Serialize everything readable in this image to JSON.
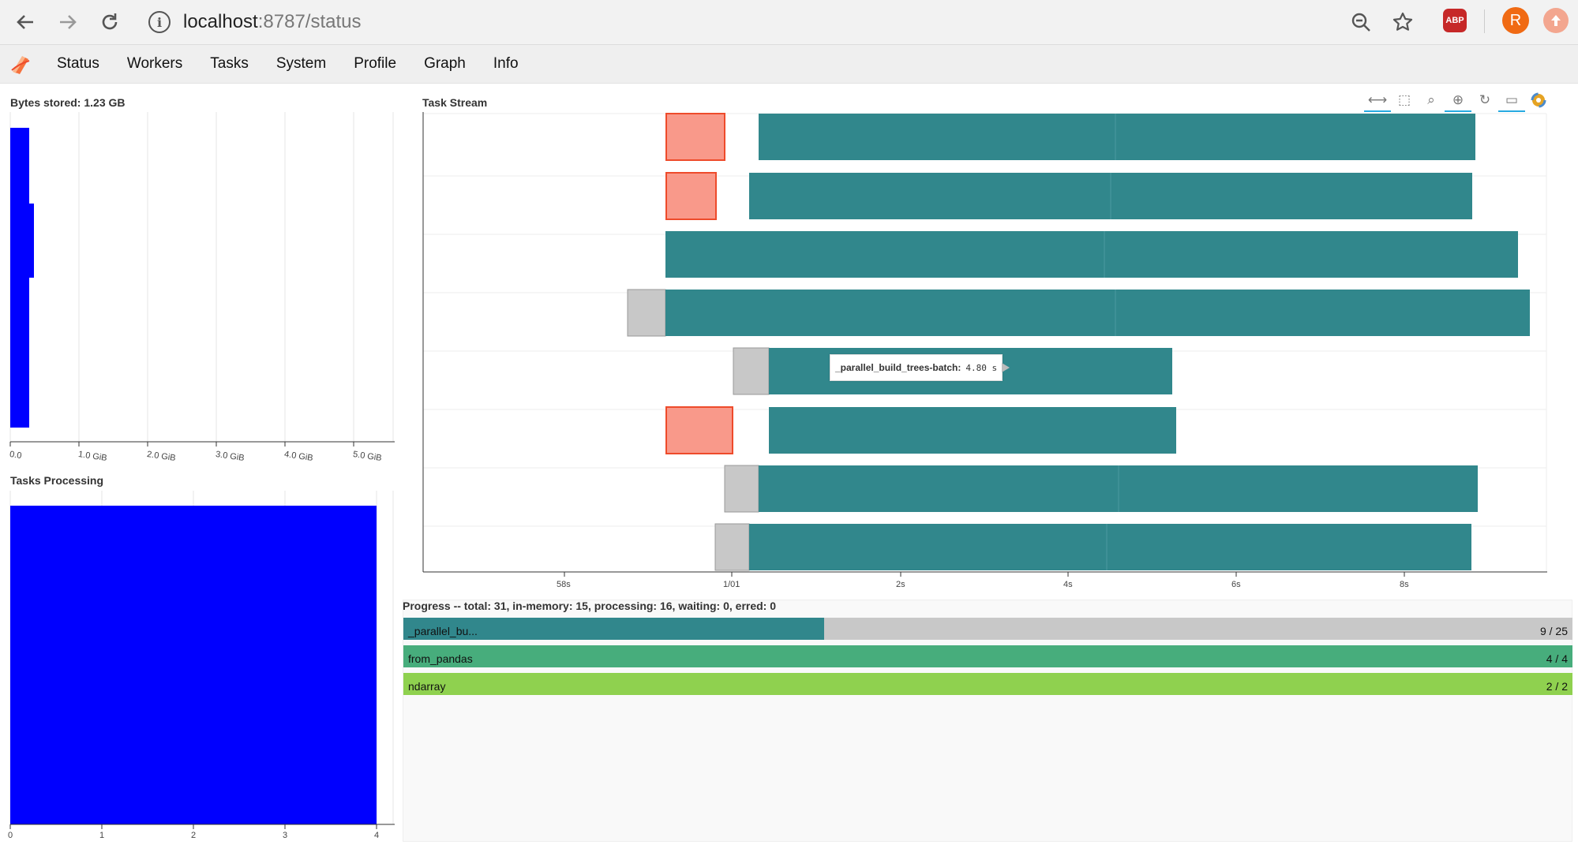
{
  "browser": {
    "url_host": "localhost",
    "url_path": ":8787/status",
    "back_icon": "arrow-left-icon",
    "forward_icon": "arrow-right-icon",
    "reload_icon": "reload-icon",
    "abp_label": "ABP",
    "avatar_letter": "R"
  },
  "nav": {
    "items": [
      "Status",
      "Workers",
      "Tasks",
      "System",
      "Profile",
      "Graph",
      "Info"
    ]
  },
  "bytes_panel": {
    "title": "Bytes stored: 1.23 GB",
    "ticks": [
      "0.0",
      "1.0 GiB",
      "2.0 GiB",
      "3.0 GiB",
      "4.0 GiB",
      "5.0 GiB"
    ],
    "bar_color": "#0000ff"
  },
  "tasks_processing": {
    "title": "Tasks Processing",
    "ticks": [
      "0",
      "1",
      "2",
      "3",
      "4"
    ],
    "bar_color": "#0000ff"
  },
  "task_stream": {
    "title": "Task Stream",
    "ticks": [
      "58s",
      "1/01",
      "2s",
      "4s",
      "6s",
      "8s"
    ],
    "tooltip_name": "_parallel_build_trees-batch:",
    "tooltip_value": "4.80 s",
    "colors": {
      "compute": "#31878c",
      "transfer": "#f9998a",
      "transfer_border": "#ee4b2b",
      "deserialize": "#c8c8c8"
    }
  },
  "progress": {
    "title": "Progress -- total: 31, in-memory: 15, processing: 16, waiting: 0, erred: 0",
    "bars": [
      {
        "name": "_parallel_bu...",
        "count": "9 / 25",
        "fraction": 0.36,
        "color": "#31878c"
      },
      {
        "name": "from_pandas",
        "count": "4 / 4",
        "fraction": 1.0,
        "color": "#47ad7c"
      },
      {
        "name": "ndarray",
        "count": "2 / 2",
        "fraction": 1.0,
        "color": "#8fd14f"
      }
    ]
  }
}
